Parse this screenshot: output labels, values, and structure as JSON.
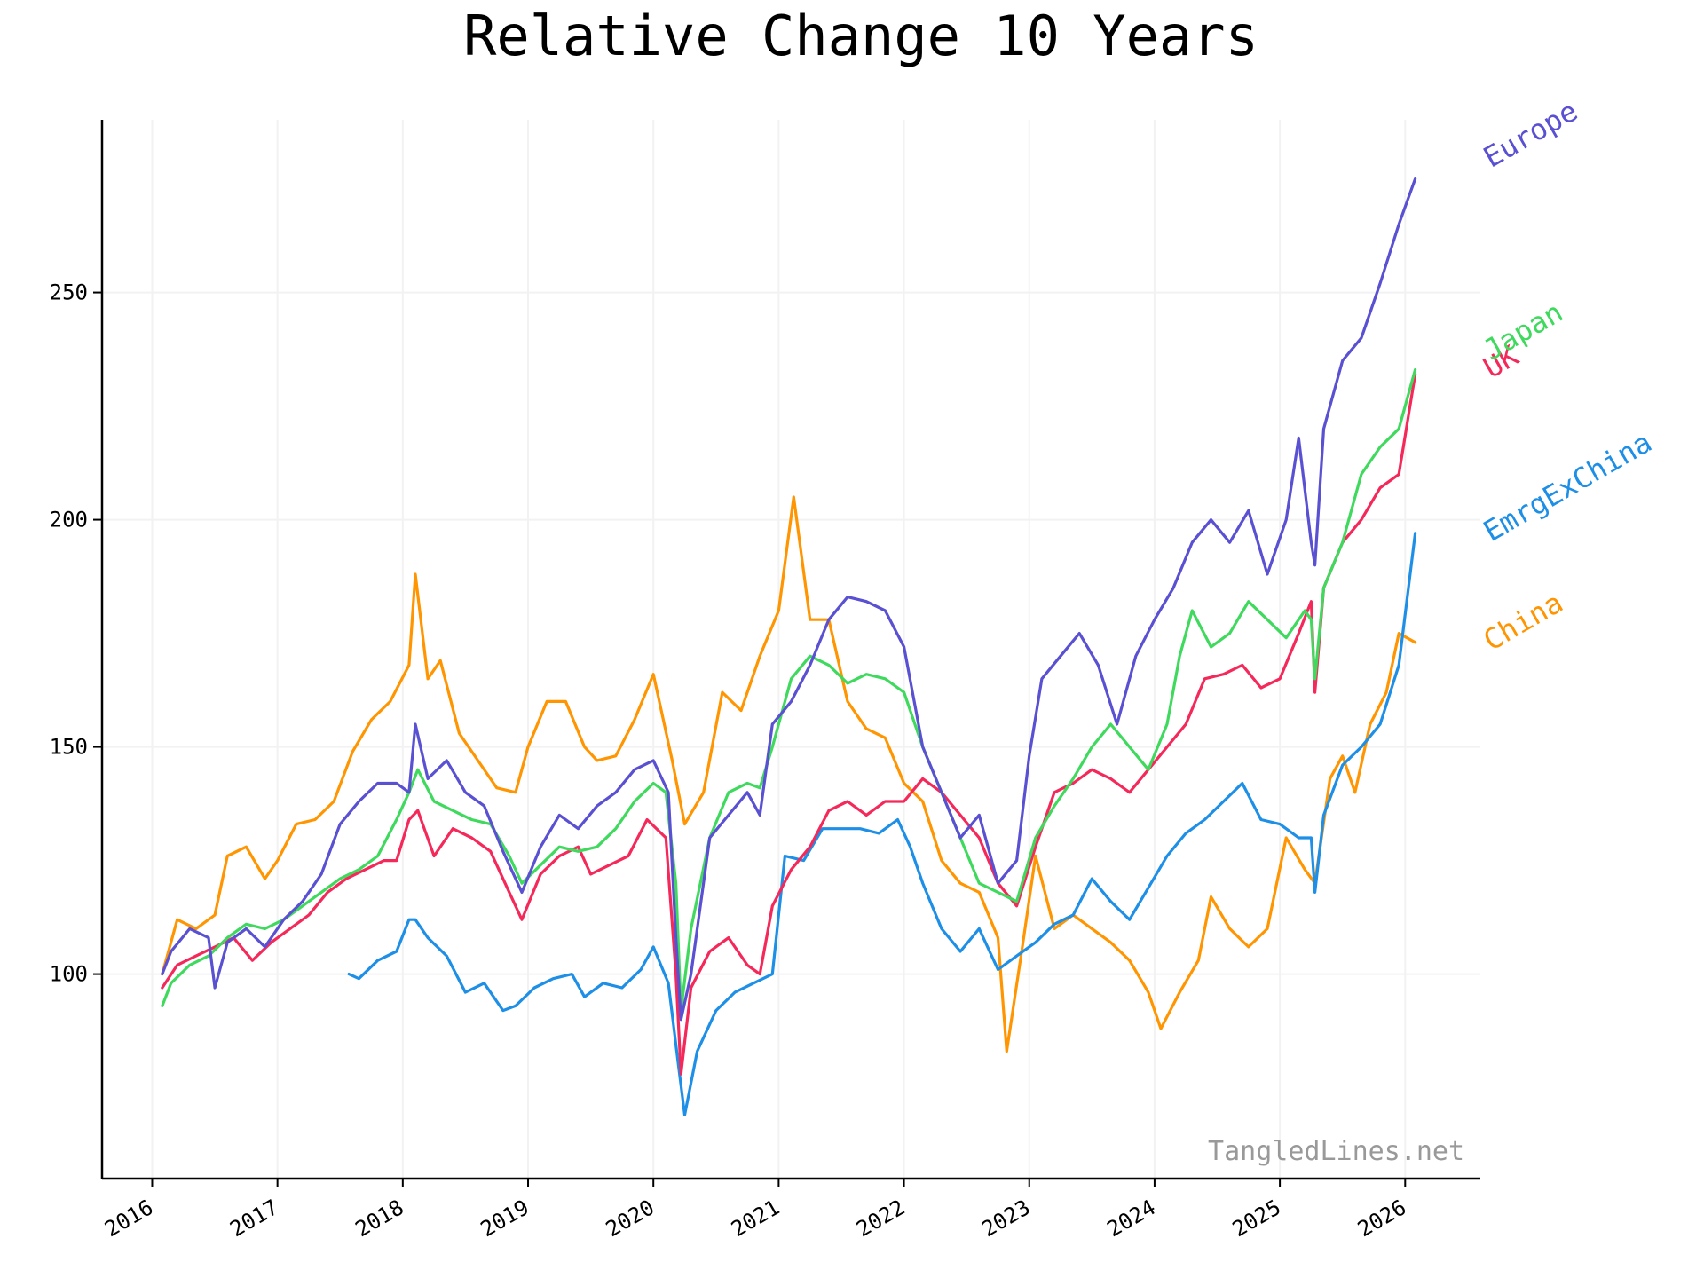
{
  "chart_data": {
    "type": "line",
    "title": "Relative Change 10 Years",
    "watermark": "TangledLines.net",
    "xlabel": "",
    "ylabel": "",
    "xlim": [
      2015.6,
      2026.6
    ],
    "ylim": [
      55,
      288
    ],
    "grid": true,
    "legend": "inline labels at right end of lines",
    "x_ticks": [
      2016,
      2017,
      2018,
      2019,
      2020,
      2021,
      2022,
      2023,
      2024,
      2025,
      2026
    ],
    "x_tick_labels": [
      "2016",
      "2017",
      "2018",
      "2019",
      "2020",
      "2021",
      "2022",
      "2023",
      "2024",
      "2025",
      "2026"
    ],
    "y_ticks": [
      100,
      150,
      200,
      250
    ],
    "y_tick_labels": [
      "100",
      "150",
      "200",
      "250"
    ],
    "series": [
      {
        "name": "China",
        "color": "#ff9500",
        "x": [
          2016.08,
          2016.2,
          2016.35,
          2016.5,
          2016.6,
          2016.75,
          2016.9,
          2017.0,
          2017.15,
          2017.3,
          2017.45,
          2017.6,
          2017.75,
          2017.9,
          2018.05,
          2018.1,
          2018.2,
          2018.3,
          2018.45,
          2018.6,
          2018.75,
          2018.9,
          2019.0,
          2019.15,
          2019.3,
          2019.45,
          2019.55,
          2019.7,
          2019.85,
          2020.0,
          2020.15,
          2020.25,
          2020.4,
          2020.55,
          2020.7,
          2020.85,
          2021.0,
          2021.12,
          2021.25,
          2021.4,
          2021.55,
          2021.7,
          2021.85,
          2022.0,
          2022.15,
          2022.3,
          2022.45,
          2022.6,
          2022.75,
          2022.82,
          2022.95,
          2023.05,
          2023.2,
          2023.35,
          2023.5,
          2023.65,
          2023.8,
          2023.95,
          2024.05,
          2024.2,
          2024.35,
          2024.45,
          2024.6,
          2024.75,
          2024.9,
          2025.05,
          2025.2,
          2025.28,
          2025.4,
          2025.5,
          2025.6,
          2025.72,
          2025.85,
          2025.95,
          2026.08
        ],
        "values": [
          100,
          112,
          110,
          113,
          126,
          128,
          121,
          125,
          133,
          134,
          138,
          149,
          156,
          160,
          168,
          188,
          165,
          169,
          153,
          147,
          141,
          140,
          150,
          160,
          160,
          150,
          147,
          148,
          156,
          166,
          147,
          133,
          140,
          162,
          158,
          170,
          180,
          205,
          178,
          178,
          160,
          154,
          152,
          142,
          138,
          125,
          120,
          118,
          108,
          83,
          107,
          126,
          110,
          113,
          110,
          107,
          103,
          96,
          88,
          96,
          103,
          117,
          110,
          106,
          110,
          130,
          123,
          120,
          143,
          148,
          140,
          155,
          162,
          175,
          173
        ]
      },
      {
        "name": "EmrgExChina",
        "color": "#1e8fe6",
        "x": [
          2017.57,
          2017.65,
          2017.8,
          2017.95,
          2018.05,
          2018.1,
          2018.2,
          2018.35,
          2018.5,
          2018.65,
          2018.8,
          2018.9,
          2019.05,
          2019.2,
          2019.35,
          2019.45,
          2019.6,
          2019.75,
          2019.9,
          2020.0,
          2020.12,
          2020.2,
          2020.25,
          2020.35,
          2020.5,
          2020.65,
          2020.8,
          2020.95,
          2021.05,
          2021.2,
          2021.35,
          2021.5,
          2021.65,
          2021.8,
          2021.95,
          2022.05,
          2022.15,
          2022.3,
          2022.45,
          2022.6,
          2022.75,
          2022.9,
          2023.05,
          2023.2,
          2023.35,
          2023.5,
          2023.65,
          2023.8,
          2023.95,
          2024.1,
          2024.25,
          2024.4,
          2024.55,
          2024.7,
          2024.85,
          2025.0,
          2025.15,
          2025.25,
          2025.28,
          2025.35,
          2025.5,
          2025.65,
          2025.8,
          2025.95,
          2026.08
        ],
        "values": [
          100,
          99,
          103,
          105,
          112,
          112,
          108,
          104,
          96,
          98,
          92,
          93,
          97,
          99,
          100,
          95,
          98,
          97,
          101,
          106,
          98,
          80,
          69,
          83,
          92,
          96,
          98,
          100,
          126,
          125,
          132,
          132,
          132,
          131,
          134,
          128,
          120,
          110,
          105,
          110,
          101,
          104,
          107,
          111,
          113,
          121,
          116,
          112,
          119,
          126,
          131,
          134,
          138,
          142,
          134,
          133,
          130,
          130,
          118,
          135,
          146,
          150,
          155,
          168,
          197
        ]
      },
      {
        "name": "UK",
        "color": "#f5285a",
        "x": [
          2016.08,
          2016.2,
          2016.35,
          2016.5,
          2016.65,
          2016.8,
          2016.95,
          2017.1,
          2017.25,
          2017.4,
          2017.55,
          2017.7,
          2017.85,
          2017.95,
          2018.05,
          2018.12,
          2018.25,
          2018.4,
          2018.55,
          2018.7,
          2018.85,
          2018.95,
          2019.1,
          2019.25,
          2019.4,
          2019.5,
          2019.65,
          2019.8,
          2019.95,
          2020.1,
          2020.18,
          2020.22,
          2020.3,
          2020.45,
          2020.6,
          2020.75,
          2020.85,
          2020.95,
          2021.1,
          2021.25,
          2021.4,
          2021.55,
          2021.7,
          2021.85,
          2022.0,
          2022.15,
          2022.3,
          2022.45,
          2022.6,
          2022.75,
          2022.9,
          2023.05,
          2023.2,
          2023.35,
          2023.5,
          2023.65,
          2023.8,
          2023.95,
          2024.1,
          2024.25,
          2024.4,
          2024.55,
          2024.7,
          2024.85,
          2025.0,
          2025.15,
          2025.25,
          2025.28,
          2025.35,
          2025.5,
          2025.65,
          2025.8,
          2025.95,
          2026.08
        ],
        "values": [
          97,
          102,
          104,
          106,
          108,
          103,
          107,
          110,
          113,
          118,
          121,
          123,
          125,
          125,
          134,
          136,
          126,
          132,
          130,
          127,
          118,
          112,
          122,
          126,
          128,
          122,
          124,
          126,
          134,
          130,
          100,
          78,
          97,
          105,
          108,
          102,
          100,
          115,
          123,
          128,
          136,
          138,
          135,
          138,
          138,
          143,
          140,
          135,
          130,
          120,
          115,
          128,
          140,
          142,
          145,
          143,
          140,
          145,
          150,
          155,
          165,
          166,
          168,
          163,
          165,
          175,
          182,
          162,
          185,
          195,
          200,
          207,
          210,
          232
        ]
      },
      {
        "name": "Japan",
        "color": "#3fd95e",
        "x": [
          2016.08,
          2016.15,
          2016.3,
          2016.45,
          2016.6,
          2016.75,
          2016.9,
          2017.05,
          2017.2,
          2017.35,
          2017.5,
          2017.65,
          2017.8,
          2017.95,
          2018.05,
          2018.12,
          2018.25,
          2018.4,
          2018.55,
          2018.7,
          2018.85,
          2018.95,
          2019.1,
          2019.25,
          2019.4,
          2019.55,
          2019.7,
          2019.85,
          2020.0,
          2020.1,
          2020.18,
          2020.22,
          2020.3,
          2020.45,
          2020.6,
          2020.75,
          2020.85,
          2020.95,
          2021.1,
          2021.25,
          2021.4,
          2021.55,
          2021.7,
          2021.85,
          2022.0,
          2022.15,
          2022.3,
          2022.45,
          2022.6,
          2022.75,
          2022.9,
          2023.05,
          2023.2,
          2023.35,
          2023.5,
          2023.65,
          2023.8,
          2023.95,
          2024.1,
          2024.2,
          2024.3,
          2024.45,
          2024.6,
          2024.75,
          2024.9,
          2025.05,
          2025.2,
          2025.25,
          2025.28,
          2025.35,
          2025.5,
          2025.65,
          2025.8,
          2025.95,
          2026.08
        ],
        "values": [
          93,
          98,
          102,
          104,
          108,
          111,
          110,
          112,
          115,
          118,
          121,
          123,
          126,
          134,
          140,
          145,
          138,
          136,
          134,
          133,
          126,
          120,
          124,
          128,
          127,
          128,
          132,
          138,
          142,
          140,
          120,
          92,
          110,
          130,
          140,
          142,
          141,
          150,
          165,
          170,
          168,
          164,
          166,
          165,
          162,
          150,
          140,
          130,
          120,
          118,
          116,
          130,
          137,
          143,
          150,
          155,
          150,
          145,
          155,
          170,
          180,
          172,
          175,
          182,
          178,
          174,
          180,
          178,
          165,
          185,
          195,
          210,
          216,
          220,
          233
        ]
      },
      {
        "name": "Europe",
        "color": "#5a50d2",
        "x": [
          2016.08,
          2016.15,
          2016.3,
          2016.45,
          2016.5,
          2016.6,
          2016.75,
          2016.9,
          2017.05,
          2017.2,
          2017.35,
          2017.5,
          2017.65,
          2017.8,
          2017.95,
          2018.05,
          2018.1,
          2018.2,
          2018.35,
          2018.5,
          2018.65,
          2018.8,
          2018.95,
          2019.1,
          2019.25,
          2019.4,
          2019.55,
          2019.7,
          2019.85,
          2020.0,
          2020.12,
          2020.18,
          2020.22,
          2020.3,
          2020.45,
          2020.6,
          2020.75,
          2020.85,
          2020.95,
          2021.1,
          2021.25,
          2021.4,
          2021.55,
          2021.7,
          2021.85,
          2022.0,
          2022.15,
          2022.3,
          2022.45,
          2022.6,
          2022.75,
          2022.9,
          2023.0,
          2023.1,
          2023.25,
          2023.4,
          2023.55,
          2023.7,
          2023.85,
          2024.0,
          2024.15,
          2024.3,
          2024.45,
          2024.6,
          2024.75,
          2024.9,
          2025.05,
          2025.15,
          2025.25,
          2025.28,
          2025.35,
          2025.5,
          2025.65,
          2025.8,
          2025.95,
          2026.08
        ],
        "values": [
          100,
          105,
          110,
          108,
          97,
          107,
          110,
          106,
          112,
          116,
          122,
          133,
          138,
          142,
          142,
          140,
          155,
          143,
          147,
          140,
          137,
          127,
          118,
          128,
          135,
          132,
          137,
          140,
          145,
          147,
          140,
          108,
          90,
          100,
          130,
          135,
          140,
          135,
          155,
          160,
          168,
          178,
          183,
          182,
          180,
          172,
          150,
          140,
          130,
          135,
          120,
          125,
          148,
          165,
          170,
          175,
          168,
          155,
          170,
          178,
          185,
          195,
          200,
          195,
          202,
          188,
          200,
          218,
          195,
          190,
          220,
          235,
          240,
          252,
          265,
          275
        ]
      }
    ]
  }
}
